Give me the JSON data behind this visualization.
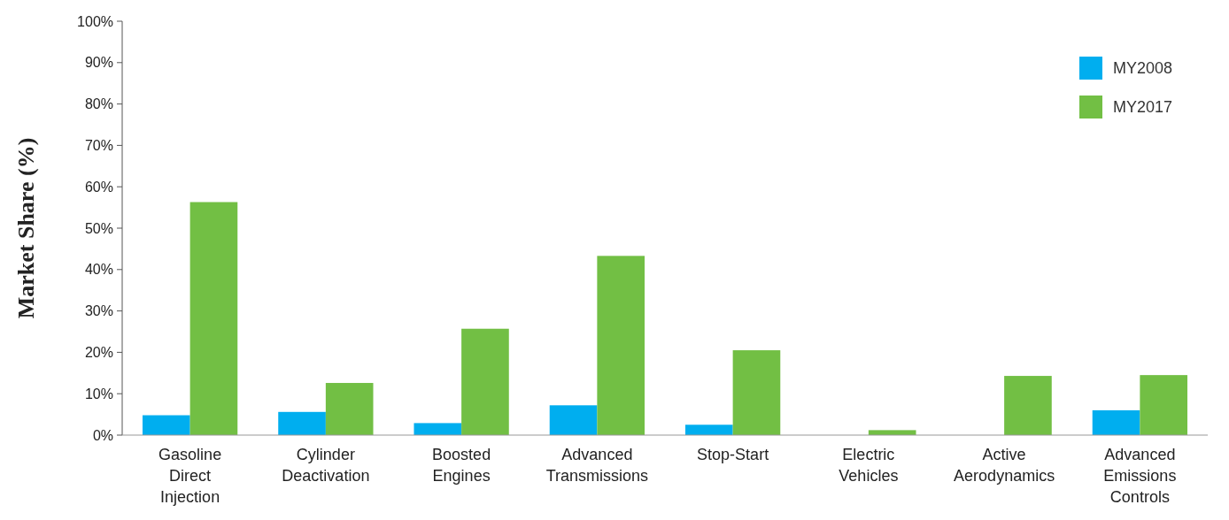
{
  "chart_data": {
    "type": "bar",
    "ylabel": "Market Share (%)",
    "categories": [
      "Gasoline Direct Injection",
      "Cylinder Deactivation",
      "Boosted Engines",
      "Advanced Transmissions",
      "Stop-Start",
      "Electric Vehicles",
      "Active Aerodynamics",
      "Advanced Emissions Controls"
    ],
    "series": [
      {
        "name": "MY2008",
        "color": "#00aeef",
        "values": [
          4.8,
          5.6,
          2.9,
          7.2,
          2.5,
          0,
          0,
          6.0
        ]
      },
      {
        "name": "MY2017",
        "color": "#72bf44",
        "values": [
          56.3,
          12.6,
          25.7,
          43.3,
          20.5,
          1.2,
          14.3,
          14.5
        ]
      }
    ],
    "ylim": [
      0,
      100
    ],
    "yticks": [
      {
        "value": 0,
        "label": "0%"
      },
      {
        "value": 10,
        "label": "10%"
      },
      {
        "value": 20,
        "label": "20%"
      },
      {
        "value": 30,
        "label": "30%"
      },
      {
        "value": 40,
        "label": "40%"
      },
      {
        "value": 50,
        "label": "50%"
      },
      {
        "value": 60,
        "label": "60%"
      },
      {
        "value": 70,
        "label": "70%"
      },
      {
        "value": 80,
        "label": "80%"
      },
      {
        "value": 90,
        "label": "90%"
      },
      {
        "value": 100,
        "label": "100%"
      }
    ],
    "legend": "top right"
  }
}
